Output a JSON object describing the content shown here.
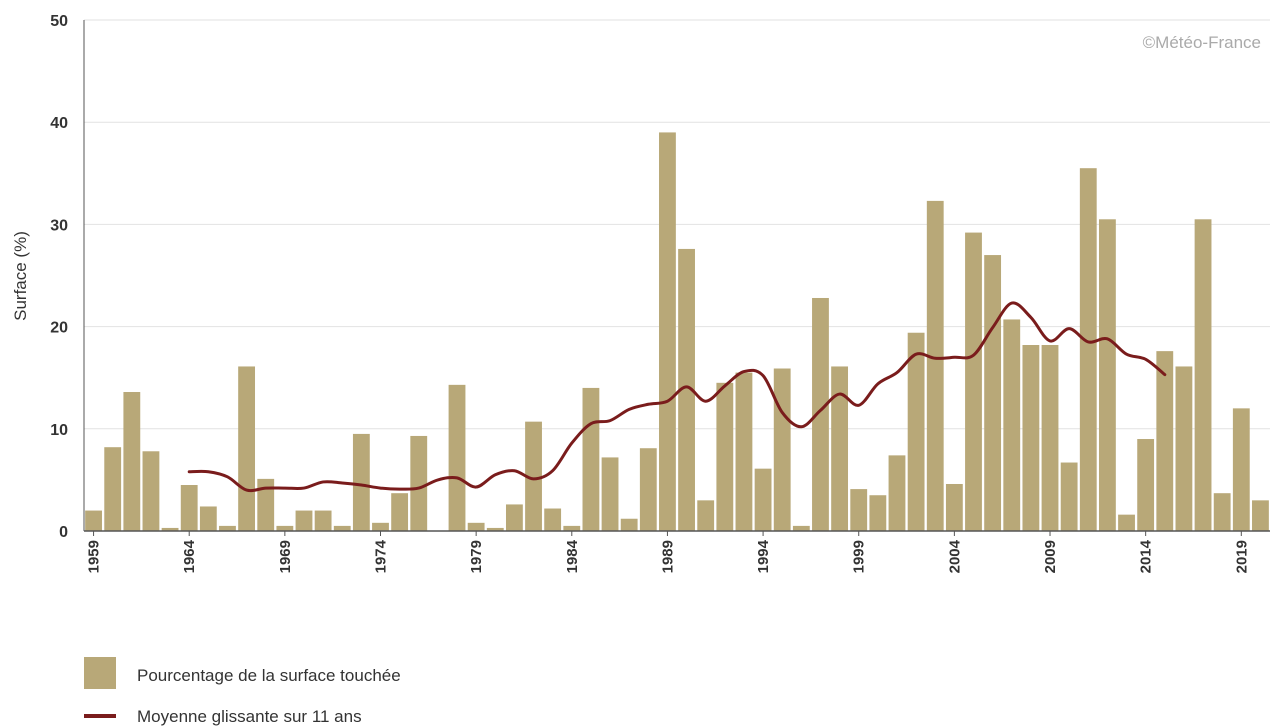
{
  "chart_data": {
    "type": "bar",
    "ylabel": "Surface (%)",
    "xlabel": "",
    "ylim": [
      0,
      50
    ],
    "yticks": [
      0,
      10,
      20,
      30,
      40,
      50
    ],
    "grid": true,
    "copyright": "©Météo-France",
    "x_tick_labels": [
      "1959",
      "1964",
      "1969",
      "1974",
      "1979",
      "1984",
      "1989",
      "1994",
      "1999",
      "2004",
      "2009",
      "2014",
      "2019"
    ],
    "categories": [
      1959,
      1960,
      1961,
      1962,
      1963,
      1964,
      1965,
      1966,
      1967,
      1968,
      1969,
      1970,
      1971,
      1972,
      1973,
      1974,
      1975,
      1976,
      1977,
      1978,
      1979,
      1980,
      1981,
      1982,
      1983,
      1984,
      1985,
      1986,
      1987,
      1988,
      1989,
      1990,
      1991,
      1992,
      1993,
      1994,
      1995,
      1996,
      1997,
      1998,
      1999,
      2000,
      2001,
      2002,
      2003,
      2004,
      2005,
      2006,
      2007,
      2008,
      2009,
      2010,
      2011,
      2012,
      2013,
      2014,
      2015,
      2016,
      2017,
      2018,
      2019,
      2020
    ],
    "series": [
      {
        "name": "Pourcentage de la surface touchée",
        "kind": "bar",
        "color": "#b8a878",
        "values": [
          2.0,
          8.2,
          13.6,
          7.8,
          0.3,
          4.5,
          2.4,
          0.5,
          16.1,
          5.1,
          0.5,
          2.0,
          2.0,
          0.5,
          9.5,
          0.8,
          3.7,
          9.3,
          0.0,
          14.3,
          0.8,
          0.3,
          2.6,
          10.7,
          2.2,
          0.5,
          14.0,
          7.2,
          1.2,
          8.1,
          39.0,
          27.6,
          3.0,
          14.5,
          15.5,
          6.1,
          15.9,
          0.5,
          22.8,
          16.1,
          4.1,
          3.5,
          7.4,
          19.4,
          32.3,
          4.6,
          29.2,
          27.0,
          20.7,
          18.2,
          18.2,
          6.7,
          35.5,
          30.5,
          1.6,
          9.0,
          17.6,
          16.1,
          30.5,
          3.7,
          12.0,
          3.0
        ]
      },
      {
        "name": "Moyenne glissante sur 11 ans",
        "kind": "line",
        "color": "#7a1c1c",
        "x": [
          1964,
          1965,
          1966,
          1967,
          1968,
          1969,
          1970,
          1971,
          1972,
          1973,
          1974,
          1975,
          1976,
          1977,
          1978,
          1979,
          1980,
          1981,
          1982,
          1983,
          1984,
          1985,
          1986,
          1987,
          1988,
          1989,
          1990,
          1991,
          1992,
          1993,
          1994,
          1995,
          1996,
          1997,
          1998,
          1999,
          2000,
          2001,
          2002,
          2003,
          2004,
          2005,
          2006,
          2007,
          2008,
          2009,
          2010,
          2011,
          2012,
          2013,
          2014,
          2015
        ],
        "values": [
          5.8,
          5.8,
          5.3,
          4.0,
          4.2,
          4.2,
          4.2,
          4.8,
          4.7,
          4.5,
          4.2,
          4.1,
          4.2,
          5.0,
          5.2,
          4.3,
          5.5,
          5.9,
          5.1,
          5.9,
          8.6,
          10.5,
          10.8,
          11.9,
          12.4,
          12.7,
          14.1,
          12.7,
          14.2,
          15.6,
          15.2,
          11.6,
          10.2,
          11.8,
          13.4,
          12.3,
          14.4,
          15.5,
          17.3,
          16.9,
          17.0,
          17.2,
          19.9,
          22.3,
          20.9,
          18.6,
          19.8,
          18.5,
          18.8,
          17.3,
          16.8,
          15.3
        ]
      }
    ],
    "legend": {
      "position": "bottom-left",
      "items": [
        {
          "label": "Pourcentage de la surface touchée",
          "shape": "square",
          "color": "#b8a878"
        },
        {
          "label": "Moyenne glissante sur 11 ans",
          "shape": "line",
          "color": "#7a1c1c"
        }
      ]
    }
  }
}
